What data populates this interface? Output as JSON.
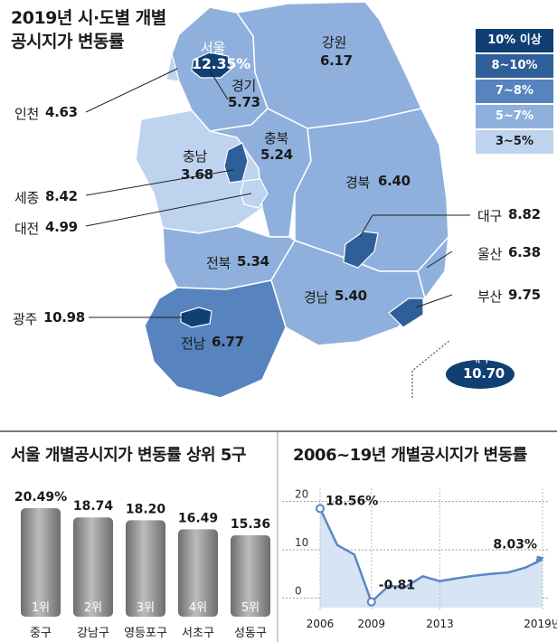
{
  "map": {
    "title_line1": "2019년 시·도별 개별",
    "title_line2": "공시지가 변동률",
    "legend": [
      {
        "label": "10% 이상",
        "color": "#0f3f73"
      },
      {
        "label": "8~10%",
        "color": "#2e5f99"
      },
      {
        "label": "7~8%",
        "color": "#5783bf"
      },
      {
        "label": "5~7%",
        "color": "#8fb0dc"
      },
      {
        "label": "3~5%",
        "color": "#bed3ee"
      }
    ],
    "regions": {
      "seoul": {
        "name": "서울",
        "value": "12.35%"
      },
      "gangwon": {
        "name": "강원",
        "value": "6.17"
      },
      "gyeonggi": {
        "name": "경기",
        "value": "5.73"
      },
      "incheon": {
        "name": "인천",
        "value": "4.63"
      },
      "chungbuk": {
        "name": "충북",
        "value": "5.24"
      },
      "chungnam": {
        "name": "충남",
        "value": "3.68"
      },
      "sejong": {
        "name": "세종",
        "value": "8.42"
      },
      "daejeon": {
        "name": "대전",
        "value": "4.99"
      },
      "gyeongbuk": {
        "name": "경북",
        "value": "6.40"
      },
      "daegu": {
        "name": "대구",
        "value": "8.82"
      },
      "ulsan": {
        "name": "울산",
        "value": "6.38"
      },
      "jeonbuk": {
        "name": "전북",
        "value": "5.34"
      },
      "gyeongnam": {
        "name": "경남",
        "value": "5.40"
      },
      "busan": {
        "name": "부산",
        "value": "9.75"
      },
      "gwangju": {
        "name": "광주",
        "value": "10.98"
      },
      "jeonnam": {
        "name": "전남",
        "value": "6.77"
      },
      "jeju": {
        "name": "제주",
        "value": "10.70"
      }
    }
  },
  "bars": {
    "title": "서울 개별공시지가 변동률 상위 5구"
  },
  "line": {
    "title": "2006~19년 개별공시지가 변동률",
    "label_first": "18.56%",
    "label_min": "-0.81",
    "label_last": "8.03%"
  },
  "chart_data": [
    {
      "type": "bar",
      "title": "서울 개별공시지가 변동률 상위 5구",
      "categories": [
        "중구",
        "강남구",
        "영등포구",
        "서초구",
        "성동구"
      ],
      "values": [
        20.49,
        18.74,
        18.2,
        16.49,
        15.36
      ],
      "value_labels": [
        "20.49%",
        "18.74",
        "18.20",
        "16.49",
        "15.36"
      ],
      "ranks": [
        "1위",
        "2위",
        "3위",
        "4위",
        "5위"
      ]
    },
    {
      "type": "area",
      "title": "2006~19년 개별공시지가 변동률",
      "x": [
        2006,
        2007,
        2008,
        2009,
        2010,
        2011,
        2012,
        2013,
        2014,
        2015,
        2016,
        2017,
        2018,
        2019
      ],
      "y": [
        18.56,
        11.0,
        9.0,
        -0.81,
        2.5,
        2.3,
        4.5,
        3.5,
        4.1,
        4.6,
        5.0,
        5.3,
        6.3,
        8.03
      ],
      "x_ticks": [
        "2006",
        "2009",
        "2013",
        "2019년"
      ],
      "x_tick_values": [
        2006,
        2009,
        2013,
        2019
      ],
      "y_ticks": [
        0,
        10,
        20
      ],
      "ylim": [
        -2,
        22
      ]
    }
  ]
}
